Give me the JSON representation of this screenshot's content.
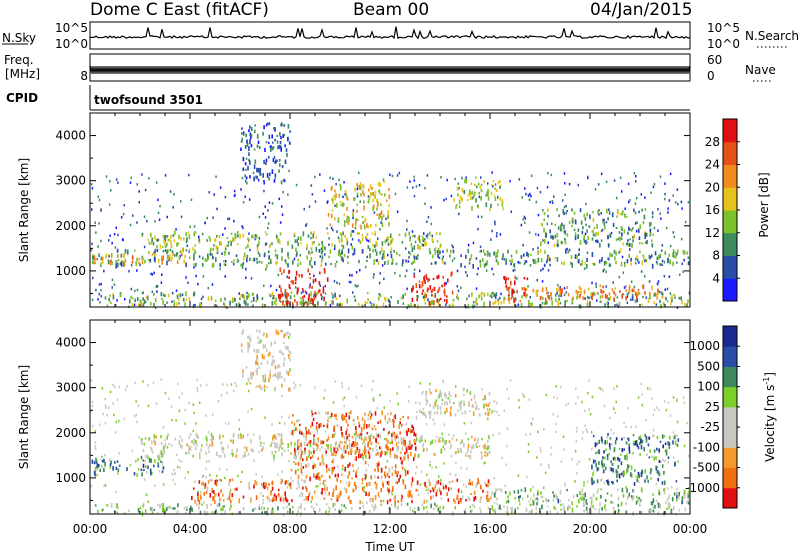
{
  "header": {
    "radar": "Dome C East (fitACF)",
    "beam": "Beam 00",
    "date": "04/Jan/2015"
  },
  "noise_panel": {
    "left_label": "N.Sky",
    "left_top_tick": "10^5",
    "left_bottom_tick": "10^0",
    "right_top_tick": "10^5",
    "right_bottom_tick": "10^0",
    "right_label": "N.Search"
  },
  "freq_panel": {
    "left_label_line1": "Freq.",
    "left_label_line2": "[MHz]",
    "left_bottom_tick": "8",
    "right_top_tick": "60",
    "right_bottom_tick": "0",
    "right_label": "Nave"
  },
  "cpid_panel": {
    "left_label": "CPID",
    "text": "twofsound 3501"
  },
  "colors": {
    "power": [
      "#1a1aff",
      "#2a4ea8",
      "#3d8c5c",
      "#7cc22d",
      "#e6c21a",
      "#f28a1e",
      "#e8501a",
      "#e01010"
    ],
    "velocity": [
      "#e01010",
      "#f07010",
      "#f59a2a",
      "#c8c8c0",
      "#c8c8c0",
      "#7ccf2a",
      "#3e8a5a",
      "#2a4ea8",
      "#1a2a90"
    ]
  },
  "chart_data": [
    {
      "type": "heatmap",
      "ylabel": "Slant Range [km]",
      "xlabel": "Time UT",
      "x_ticks": [
        "00:00",
        "04:00",
        "08:00",
        "12:00",
        "16:00",
        "20:00",
        "00:00"
      ],
      "xlim_hours": [
        0,
        24
      ],
      "y_ticks": [
        1000,
        2000,
        3000,
        4000
      ],
      "ylim": [
        200,
        4500
      ],
      "colorbar": {
        "label": "Power [dB]",
        "ticks": [
          "4",
          "8",
          "12",
          "16",
          "20",
          "24",
          "28"
        ],
        "range": [
          0,
          30
        ]
      },
      "regions": [
        {
          "t0": 0.0,
          "t1": 24.0,
          "r0": 1150,
          "r1": 1500,
          "level": 0.35
        },
        {
          "t0": 0.0,
          "t1": 4.0,
          "r0": 1200,
          "r1": 1400,
          "level": 0.65
        },
        {
          "t0": 2.0,
          "t1": 14.0,
          "r0": 1500,
          "r1": 1900,
          "level": 0.45
        },
        {
          "t0": 0.5,
          "t1": 24.0,
          "r0": 250,
          "r1": 550,
          "level": 0.4
        },
        {
          "t0": 7.5,
          "t1": 9.5,
          "r0": 300,
          "r1": 1100,
          "level": 0.95
        },
        {
          "t0": 12.8,
          "t1": 14.5,
          "r0": 300,
          "r1": 1000,
          "level": 0.92
        },
        {
          "t0": 16.5,
          "t1": 17.5,
          "r0": 350,
          "r1": 900,
          "level": 0.9
        },
        {
          "t0": 17.0,
          "t1": 23.0,
          "r0": 400,
          "r1": 700,
          "level": 0.7
        },
        {
          "t0": 9.5,
          "t1": 12.0,
          "r0": 2000,
          "r1": 3000,
          "level": 0.55
        },
        {
          "t0": 14.5,
          "t1": 16.5,
          "r0": 2400,
          "r1": 3100,
          "level": 0.45
        },
        {
          "t0": 18.0,
          "t1": 22.5,
          "r0": 1600,
          "r1": 2400,
          "level": 0.35
        },
        {
          "t0": 6.0,
          "t1": 8.0,
          "r0": 3000,
          "r1": 4300,
          "level": 0.2
        }
      ]
    },
    {
      "type": "heatmap",
      "ylabel": "Slant Range [km]",
      "xlabel": "Time UT",
      "x_ticks": [
        "00:00",
        "04:00",
        "08:00",
        "12:00",
        "16:00",
        "20:00",
        "00:00"
      ],
      "xlim_hours": [
        0,
        24
      ],
      "y_ticks": [
        1000,
        2000,
        3000,
        4000
      ],
      "ylim": [
        200,
        4500
      ],
      "colorbar": {
        "label": "Velocity [m s-1]",
        "label_main": "Velocity [m s",
        "label_sup": "-1",
        "label_end": "]",
        "ticks": [
          "1000",
          "500",
          "100",
          "25",
          "-25",
          "-100",
          "-500",
          "-1000"
        ]
      },
      "regions": [
        {
          "t0": 0.0,
          "t1": 3.0,
          "r0": 1100,
          "r1": 1500,
          "level": 0.72
        },
        {
          "t0": 2.0,
          "t1": 16.0,
          "r0": 1500,
          "r1": 2000,
          "level": 0.45
        },
        {
          "t0": 4.0,
          "t1": 16.0,
          "r0": 500,
          "r1": 1000,
          "level": 0.2
        },
        {
          "t0": 8.0,
          "t1": 13.0,
          "r0": 1000,
          "r1": 2500,
          "level": 0.18
        },
        {
          "t0": 13.0,
          "t1": 16.0,
          "r0": 2400,
          "r1": 3000,
          "level": 0.45
        },
        {
          "t0": 0.0,
          "t1": 24.0,
          "r0": 250,
          "r1": 450,
          "level": 0.6
        },
        {
          "t0": 16.0,
          "t1": 24.0,
          "r0": 450,
          "r1": 800,
          "level": 0.62
        },
        {
          "t0": 20.0,
          "t1": 23.5,
          "r0": 900,
          "r1": 2000,
          "level": 0.78
        },
        {
          "t0": 6.0,
          "t1": 8.0,
          "r0": 3000,
          "r1": 4300,
          "level": 0.4
        }
      ]
    }
  ]
}
